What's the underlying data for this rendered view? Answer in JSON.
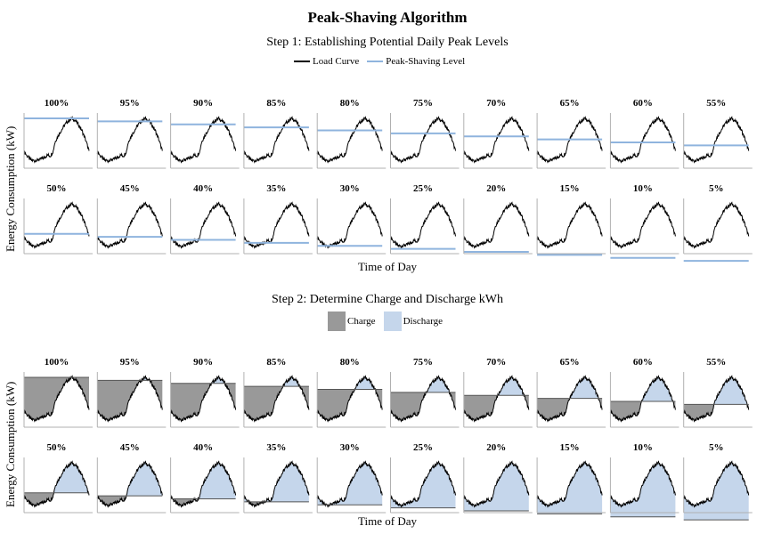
{
  "title": "Peak-Shaving Algorithm",
  "step1": {
    "title": "Step 1: Establishing Potential Daily Peak Levels",
    "legend": {
      "load": "Load Curve",
      "level": "Peak-Shaving Level"
    },
    "xlabel": "Time of Day",
    "ylabel": "Energy Consumption (kW)"
  },
  "step2": {
    "title": "Step 2: Determine Charge and Discharge kWh",
    "legend": {
      "charge": "Charge",
      "discharge": "Discharge"
    },
    "xlabel": "Time of Day",
    "ylabel": "Energy Consumption (kW)"
  },
  "colors": {
    "load": "#000000",
    "level": "#8fb4de",
    "charge": "#999999",
    "discharge": "#c5d6eb",
    "axis": "#b0b0b0"
  },
  "chart_data": {
    "type": "line",
    "panels": [
      "100%",
      "95%",
      "90%",
      "85%",
      "80%",
      "75%",
      "70%",
      "65%",
      "60%",
      "55%",
      "50%",
      "45%",
      "40%",
      "35%",
      "30%",
      "25%",
      "20%",
      "15%",
      "10%",
      "5%"
    ],
    "peak_levels_pct": [
      100,
      95,
      90,
      85,
      80,
      75,
      70,
      65,
      60,
      55,
      50,
      45,
      40,
      35,
      30,
      25,
      20,
      15,
      10,
      5
    ],
    "load_curve_pct_of_peak": [
      44,
      42,
      38,
      36,
      33,
      31,
      30,
      30,
      29,
      31,
      30,
      32,
      31,
      33,
      33,
      35,
      36,
      38,
      39,
      38,
      38,
      42,
      46,
      58,
      64,
      68,
      72,
      76,
      80,
      83,
      87,
      90,
      93,
      95,
      97,
      98,
      100,
      99,
      97,
      95,
      93,
      90,
      86,
      82,
      78,
      72,
      67,
      60,
      53,
      46
    ],
    "series": [
      {
        "name": "Load Curve"
      },
      {
        "name": "Peak-Shaving Level"
      }
    ],
    "areas": [
      "Charge",
      "Discharge"
    ],
    "xlabel": "Time of Day",
    "ylabel": "Energy Consumption (kW)",
    "grid": false,
    "legend_position": "top-center"
  }
}
